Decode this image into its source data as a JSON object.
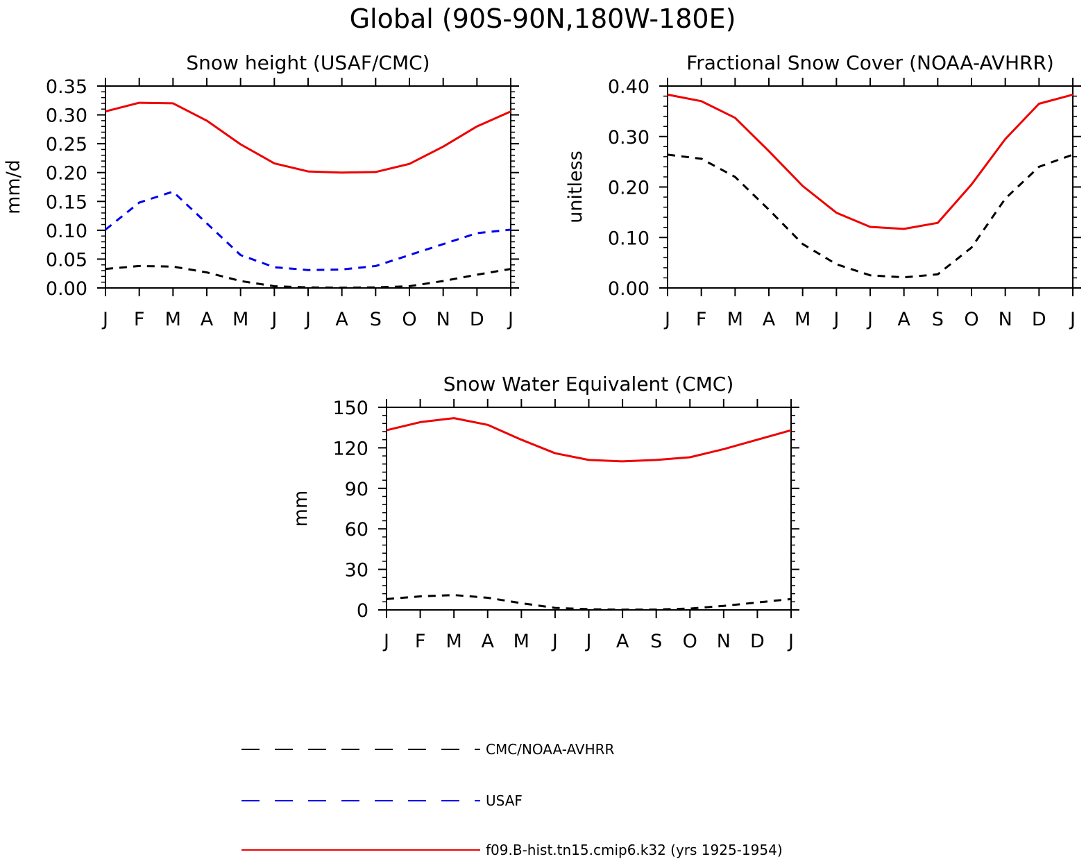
{
  "title": "Global (90S-90N,180W-180E)",
  "colors": {
    "obs": "#000000",
    "usaf": "#0000ee",
    "model": "#ee0000"
  },
  "legend": [
    {
      "label": "CMC/NOAA-AVHRR",
      "color": "#000000",
      "style": "dashed"
    },
    {
      "label": "USAF",
      "color": "#0000ee",
      "style": "dashed"
    },
    {
      "label": "f09.B-hist.tn15.cmip6.k32 (yrs 1925-1954)",
      "color": "#ee0000",
      "style": "solid"
    }
  ],
  "chart_data": [
    {
      "type": "line",
      "title": "Snow height (USAF/CMC)",
      "ylabel": "mm/d",
      "xlabel": "",
      "categories": [
        "J",
        "F",
        "M",
        "A",
        "M",
        "J",
        "J",
        "A",
        "S",
        "O",
        "N",
        "D",
        "J"
      ],
      "ylim": [
        0,
        0.35
      ],
      "yticks": [
        "0.00",
        "0.05",
        "0.10",
        "0.15",
        "0.20",
        "0.25",
        "0.30",
        "0.35"
      ],
      "ytick_values": [
        0,
        0.05,
        0.1,
        0.15,
        0.2,
        0.25,
        0.3,
        0.35
      ],
      "grid": false,
      "series": [
        {
          "name": "f09.B-hist.tn15.cmip6.k32 (yrs 1925-1954)",
          "style": "solid",
          "color": "#ee0000",
          "values": [
            0.306,
            0.321,
            0.32,
            0.29,
            0.249,
            0.216,
            0.202,
            0.2,
            0.201,
            0.215,
            0.245,
            0.28,
            0.306
          ]
        },
        {
          "name": "USAF",
          "style": "dashed",
          "color": "#0000ee",
          "values": [
            0.101,
            0.148,
            0.167,
            0.112,
            0.057,
            0.036,
            0.031,
            0.032,
            0.038,
            0.057,
            0.076,
            0.095,
            0.101
          ]
        },
        {
          "name": "CMC/NOAA-AVHRR",
          "style": "dashed",
          "color": "#000000",
          "values": [
            0.033,
            0.038,
            0.037,
            0.027,
            0.012,
            0.003,
            0.001,
            0.0005,
            0.001,
            0.003,
            0.012,
            0.023,
            0.033
          ]
        }
      ]
    },
    {
      "type": "line",
      "title": "Fractional Snow Cover (NOAA-AVHRR)",
      "ylabel": "unitless",
      "xlabel": "",
      "categories": [
        "J",
        "F",
        "M",
        "A",
        "M",
        "J",
        "J",
        "A",
        "S",
        "O",
        "N",
        "D",
        "J"
      ],
      "ylim": [
        0,
        0.4
      ],
      "yticks": [
        "0.00",
        "0.10",
        "0.20",
        "0.30",
        "0.40"
      ],
      "ytick_values": [
        0,
        0.1,
        0.2,
        0.3,
        0.4
      ],
      "grid": false,
      "series": [
        {
          "name": "f09.B-hist.tn15.cmip6.k32 (yrs 1925-1954)",
          "style": "solid",
          "color": "#ee0000",
          "values": [
            0.383,
            0.37,
            0.337,
            0.271,
            0.202,
            0.149,
            0.121,
            0.117,
            0.129,
            0.205,
            0.295,
            0.365,
            0.383
          ]
        },
        {
          "name": "CMC/NOAA-AVHRR",
          "style": "dashed",
          "color": "#000000",
          "values": [
            0.264,
            0.256,
            0.22,
            0.155,
            0.087,
            0.047,
            0.025,
            0.021,
            0.027,
            0.08,
            0.177,
            0.24,
            0.264
          ]
        }
      ]
    },
    {
      "type": "line",
      "title": "Snow Water Equivalent (CMC)",
      "ylabel": "mm",
      "xlabel": "",
      "categories": [
        "J",
        "F",
        "M",
        "A",
        "M",
        "J",
        "J",
        "A",
        "S",
        "O",
        "N",
        "D",
        "J"
      ],
      "ylim": [
        0,
        150
      ],
      "yticks": [
        "0",
        "30",
        "60",
        "90",
        "120",
        "150"
      ],
      "ytick_values": [
        0,
        30,
        60,
        90,
        120,
        150
      ],
      "grid": false,
      "series": [
        {
          "name": "f09.B-hist.tn15.cmip6.k32 (yrs 1925-1954)",
          "style": "solid",
          "color": "#ee0000",
          "values": [
            133,
            139,
            142,
            137,
            126,
            116,
            111,
            110,
            111,
            113,
            119,
            126,
            133
          ]
        },
        {
          "name": "CMC/NOAA-AVHRR",
          "style": "dashed",
          "color": "#000000",
          "values": [
            8,
            10,
            11,
            9,
            5,
            1.5,
            0.5,
            0.2,
            0.3,
            1,
            3,
            5.5,
            8
          ]
        }
      ]
    }
  ]
}
